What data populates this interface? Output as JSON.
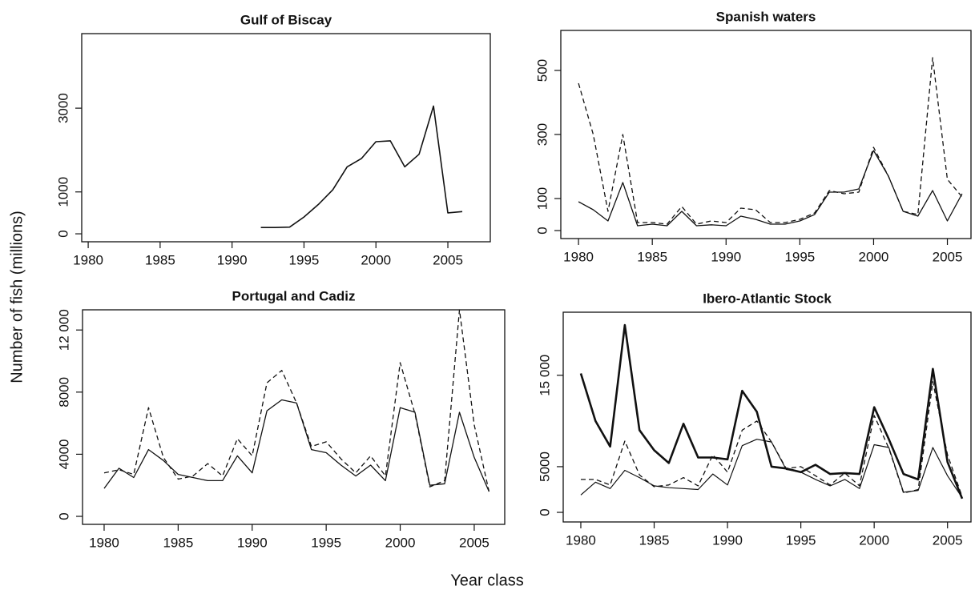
{
  "ylabel": "Number of fish (millions)",
  "xlabel": "Year class",
  "chart_data": [
    {
      "type": "line",
      "title": "Gulf of Biscay",
      "x": [
        1992,
        1993,
        1994,
        1995,
        1996,
        1997,
        1998,
        1999,
        2000,
        2001,
        2002,
        2003,
        2004,
        2005,
        2006
      ],
      "xlim": [
        1979.55,
        2007.95
      ],
      "xticks": [
        1980,
        1985,
        1990,
        1995,
        2000,
        2005
      ],
      "ylim": [
        -190,
        4780
      ],
      "yticks": [
        0,
        1000,
        3000
      ],
      "series": [
        {
          "color": "#111111",
          "width": 1.6,
          "dash": false,
          "values": [
            150,
            150,
            160,
            400,
            700,
            1050,
            1600,
            1800,
            2200,
            2220,
            1600,
            1900,
            3050,
            500,
            530
          ]
        }
      ]
    },
    {
      "type": "line",
      "title": "Spanish waters",
      "x": [
        1980,
        1981,
        1982,
        1983,
        1984,
        1985,
        1986,
        1987,
        1988,
        1989,
        1990,
        1991,
        1992,
        1993,
        1994,
        1995,
        1996,
        1997,
        1998,
        1999,
        2000,
        2001,
        2002,
        2003,
        2004,
        2005,
        2006
      ],
      "xlim": [
        1978.8,
        2006.6
      ],
      "xticks": [
        1980,
        1985,
        1990,
        1995,
        2000,
        2005
      ],
      "ylim": [
        -25,
        625
      ],
      "yticks": [
        0,
        100,
        300,
        500
      ],
      "series": [
        {
          "color": "#111111",
          "width": 1.3,
          "dash": false,
          "values": [
            90,
            65,
            30,
            150,
            15,
            20,
            15,
            60,
            15,
            18,
            15,
            45,
            35,
            20,
            20,
            30,
            50,
            120,
            120,
            130,
            250,
            170,
            60,
            45,
            125,
            30,
            115
          ]
        },
        {
          "color": "#111111",
          "width": 1.3,
          "dash": true,
          "values": [
            460,
            300,
            60,
            300,
            25,
            25,
            20,
            75,
            20,
            30,
            25,
            70,
            65,
            25,
            25,
            35,
            55,
            125,
            115,
            120,
            260,
            170,
            60,
            50,
            540,
            160,
            105
          ]
        }
      ]
    },
    {
      "type": "line",
      "title": "Portugal and Cadiz",
      "x": [
        1980,
        1981,
        1982,
        1983,
        1984,
        1985,
        1986,
        1987,
        1988,
        1989,
        1990,
        1991,
        1992,
        1993,
        1994,
        1995,
        1996,
        1997,
        1998,
        1999,
        2000,
        2001,
        2002,
        2003,
        2004,
        2005,
        2006
      ],
      "xlim": [
        1978.54,
        2007.06
      ],
      "xticks": [
        1980,
        1985,
        1990,
        1995,
        2000,
        2005
      ],
      "ylim": [
        -515,
        13300
      ],
      "yticks": [
        0,
        4000,
        8000,
        {
          "value": 12000,
          "label": "12 000"
        }
      ],
      "series": [
        {
          "color": "#111111",
          "width": 1.3,
          "dash": false,
          "values": [
            1800,
            3100,
            2500,
            4300,
            3600,
            2700,
            2500,
            2300,
            2300,
            3900,
            2800,
            6800,
            7500,
            7300,
            4300,
            4100,
            3300,
            2600,
            3300,
            2300,
            7000,
            6700,
            2000,
            2100,
            6700,
            3800,
            1600
          ]
        },
        {
          "color": "#111111",
          "width": 1.3,
          "dash": true,
          "values": [
            2800,
            3000,
            2700,
            7000,
            3800,
            2400,
            2600,
            3400,
            2600,
            5000,
            3900,
            8600,
            9400,
            7300,
            4500,
            4800,
            3700,
            2800,
            3900,
            2600,
            9900,
            6600,
            1900,
            2300,
            13300,
            5900,
            1600
          ]
        }
      ]
    },
    {
      "type": "line",
      "title": "Ibero-Atlantic Stock",
      "x": [
        1980,
        1981,
        1982,
        1983,
        1984,
        1985,
        1986,
        1987,
        1988,
        1989,
        1990,
        1991,
        1992,
        1993,
        1994,
        1995,
        1996,
        1997,
        1998,
        1999,
        2000,
        2001,
        2002,
        2003,
        2004,
        2005,
        2006
      ],
      "xlim": [
        1978.8,
        2006.6
      ],
      "xticks": [
        1980,
        1985,
        1990,
        1995,
        2000,
        2005
      ],
      "ylim": [
        -1050,
        21900
      ],
      "yticks": [
        0,
        5000,
        {
          "value": 15000,
          "label": "15 000"
        }
      ],
      "series": [
        {
          "color": "#111111",
          "width": 2.6,
          "dash": false,
          "values": [
            15200,
            10000,
            7200,
            20500,
            9000,
            6800,
            5400,
            9700,
            6000,
            6000,
            5800,
            13300,
            11000,
            5000,
            4800,
            4400,
            5200,
            4200,
            4300,
            4200,
            11500,
            8000,
            4200,
            3600,
            15700,
            5500,
            1500
          ]
        },
        {
          "color": "#111111",
          "width": 1.2,
          "dash": false,
          "values": [
            1900,
            3300,
            2600,
            4600,
            3800,
            2900,
            2700,
            2600,
            2500,
            4200,
            3000,
            7300,
            8000,
            7700,
            4700,
            4400,
            3600,
            2900,
            3600,
            2600,
            7400,
            7100,
            2200,
            2400,
            7100,
            4000,
            1600
          ]
        },
        {
          "color": "#111111",
          "width": 1.3,
          "dash": true,
          "values": [
            3600,
            3600,
            3000,
            7800,
            4100,
            2800,
            3000,
            3800,
            2900,
            6300,
            4400,
            9000,
            10000,
            7700,
            4800,
            5000,
            4000,
            3000,
            4300,
            2900,
            10600,
            7000,
            2100,
            2500,
            14300,
            6300,
            1700
          ]
        }
      ]
    }
  ]
}
